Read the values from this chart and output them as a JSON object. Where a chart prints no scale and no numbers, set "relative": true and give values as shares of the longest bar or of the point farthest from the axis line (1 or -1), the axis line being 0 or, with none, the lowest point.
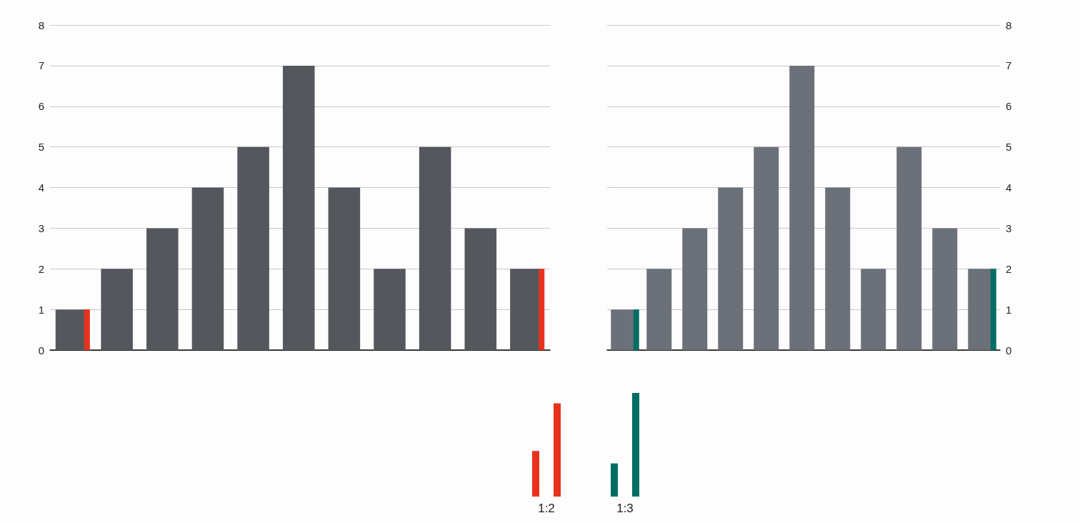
{
  "chart_data": [
    {
      "type": "bar",
      "categories": [
        null,
        null,
        null,
        null,
        null,
        null,
        null,
        null,
        null,
        null,
        null
      ],
      "series": [
        {
          "color": "#54585d",
          "values": [
            1,
            2,
            3,
            4,
            5,
            7,
            4,
            2,
            5,
            3,
            2
          ]
        },
        {
          "color": "#e8321e",
          "values": [
            1,
            null,
            null,
            null,
            null,
            null,
            null,
            null,
            null,
            null,
            2
          ]
        }
      ],
      "ylim": [
        0,
        8
      ],
      "yticks": [
        0,
        1,
        2,
        3,
        4,
        5,
        6,
        7,
        8
      ],
      "grid": "y"
    },
    {
      "type": "bar",
      "categories": [
        null,
        null,
        null,
        null,
        null,
        null,
        null,
        null,
        null,
        null,
        null
      ],
      "series": [
        {
          "color": "#6c7179",
          "values": [
            1,
            2,
            3,
            4,
            5,
            7,
            4,
            2,
            5,
            3,
            2
          ],
          "axis": "y2"
        },
        {
          "color": "#006e63",
          "values": [
            1,
            null,
            null,
            null,
            null,
            null,
            null,
            null,
            null,
            null,
            2
          ],
          "axis": "y2"
        }
      ],
      "y2lim": [
        0,
        8
      ],
      "y2ticks": [
        0,
        1,
        2,
        3,
        4,
        5,
        6,
        7,
        8
      ],
      "grid": "y"
    },
    {
      "type": "bar",
      "relative": true,
      "categories": [
        "1:2",
        "1:3"
      ],
      "series": [
        {
          "colors": [
            "#e8321e",
            "#006e63"
          ],
          "values": [
            0.44,
            0.32
          ]
        },
        {
          "colors": [
            "#e8321e",
            "#006e63"
          ],
          "values": [
            0.9,
            1
          ]
        }
      ],
      "grid": false
    }
  ]
}
